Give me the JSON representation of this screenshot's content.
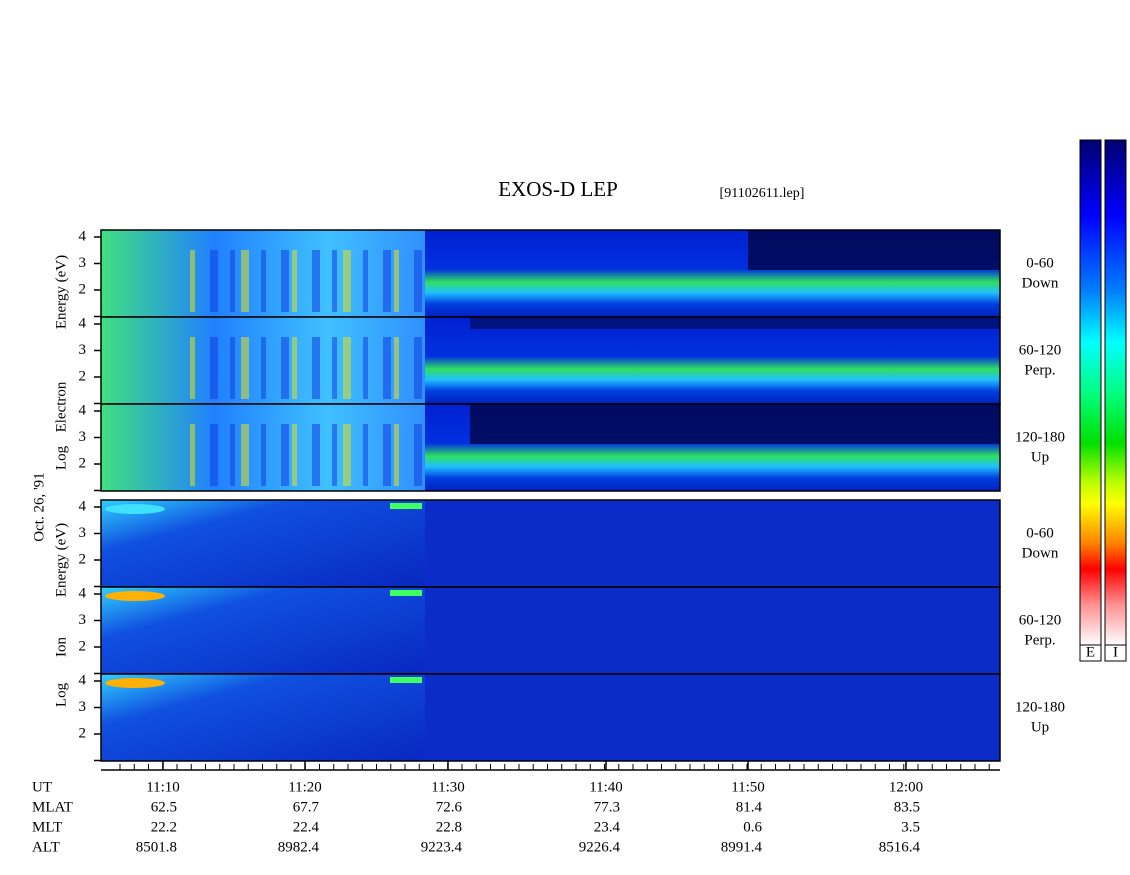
{
  "title": "EXOS-D LEP",
  "file": "[91102611.lep]",
  "date": "Oct. 26, '91",
  "electron_axis": [
    "Log",
    "Electron",
    "Energy (eV)"
  ],
  "ion_axis": [
    "Log",
    "Ion",
    "Energy (eV)"
  ],
  "panel_labels": [
    [
      "0-60",
      "Down"
    ],
    [
      "60-120",
      "Perp."
    ],
    [
      "120-180",
      "Up"
    ],
    [
      "0-60",
      "Down"
    ],
    [
      "60-120",
      "Perp."
    ],
    [
      "120-180",
      "Up"
    ]
  ],
  "y_tick_labels": [
    "2",
    "3",
    "4"
  ],
  "time_labels": [
    "11:10",
    "11:20",
    "11:30",
    "11:40",
    "11:50",
    "12:00"
  ],
  "ephemeris": [
    {
      "name": "UT",
      "values": []
    },
    {
      "name": "MLAT",
      "values": [
        62.5,
        67.7,
        72.6,
        77.3,
        81.4,
        83.5
      ]
    },
    {
      "name": "MLT",
      "values": [
        22.2,
        22.4,
        22.8,
        23.4,
        0.6,
        3.5
      ]
    },
    {
      "name": "ALT",
      "values": [
        8501.8,
        8982.4,
        9223.4,
        9226.4,
        8991.4,
        8516.4
      ]
    }
  ],
  "colorbar_labels": [
    "E",
    "I"
  ]
}
